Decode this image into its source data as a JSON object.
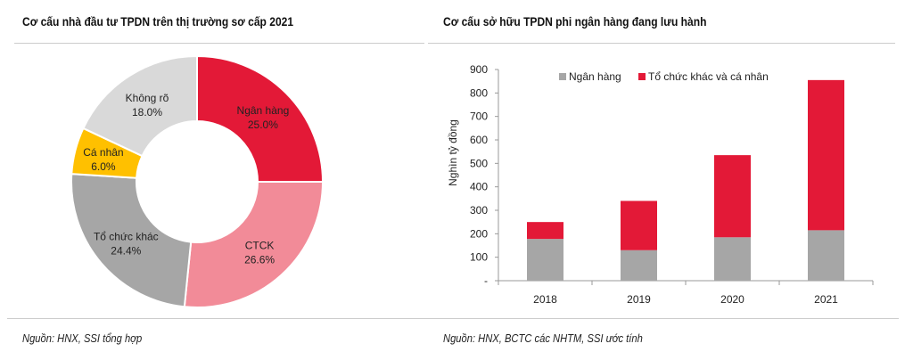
{
  "left": {
    "title": "Cơ cấu nhà đầu tư TPDN trên thị trường sơ cấp 2021",
    "source": "Nguồn: HNX, SSI tổng hợp"
  },
  "right": {
    "title": "Cơ cấu sở hữu TPDN phi ngân hàng đang lưu hành",
    "source": "Nguồn: HNX, BCTC các NHTM, SSI ước tính"
  },
  "chart_data": [
    {
      "type": "pie",
      "variant": "donut",
      "title": "Cơ cấu nhà đầu tư TPDN trên thị trường sơ cấp 2021",
      "slices": [
        {
          "label": "Ngân hàng",
          "value": 25.0,
          "display": "25.0%",
          "color": "#e31937"
        },
        {
          "label": "CTCK",
          "value": 26.6,
          "display": "26.6%",
          "color": "#f28b98"
        },
        {
          "label": "Tổ chức khác",
          "value": 24.4,
          "display": "24.4%",
          "color": "#a6a6a6"
        },
        {
          "label": "Cá nhân",
          "value": 6.0,
          "display": "6.0%",
          "color": "#ffc000"
        },
        {
          "label": "Không rõ",
          "value": 18.0,
          "display": "18.0%",
          "color": "#d9d9d9"
        }
      ]
    },
    {
      "type": "bar",
      "stacked": true,
      "title": "Cơ cấu sở hữu TPDN phi ngân hàng đang lưu hành",
      "categories": [
        "2018",
        "2019",
        "2020",
        "2021"
      ],
      "series": [
        {
          "name": "Ngân hàng",
          "values": [
            178,
            130,
            185,
            215
          ],
          "color": "#a6a6a6"
        },
        {
          "name": "Tổ chức khác và cá nhân",
          "values": [
            72,
            210,
            350,
            640
          ],
          "color": "#e31937"
        }
      ],
      "ylabel": "Nghìn tỷ đồng",
      "xlabel": "",
      "ylim": [
        0,
        900
      ],
      "yticks": [
        "-",
        "100",
        "200",
        "300",
        "400",
        "500",
        "600",
        "700",
        "800",
        "900"
      ],
      "ytick_values": [
        0,
        100,
        200,
        300,
        400,
        500,
        600,
        700,
        800,
        900
      ],
      "legend": "top"
    }
  ]
}
